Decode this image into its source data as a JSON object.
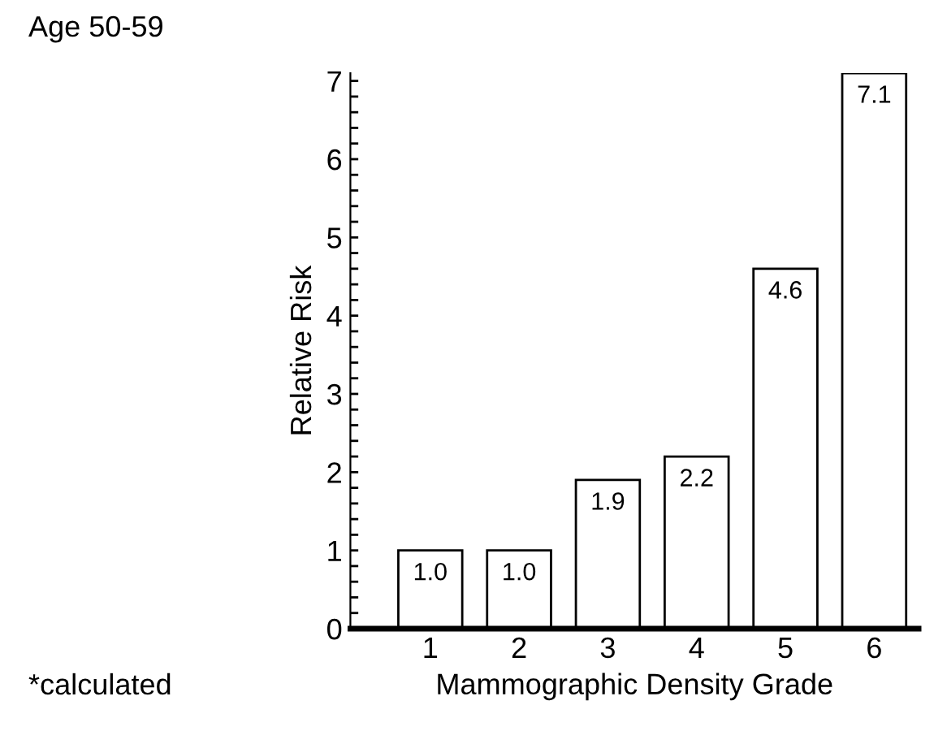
{
  "chart_data": {
    "type": "bar",
    "title": "Age 50-59",
    "xlabel": "Mammographic Density Grade",
    "ylabel": "Relative Risk",
    "categories": [
      "1",
      "2",
      "3",
      "4",
      "5",
      "6"
    ],
    "values": [
      1.0,
      1.0,
      1.9,
      2.2,
      4.6,
      7.1
    ],
    "value_labels": [
      "1.0",
      "1.0",
      "1.9",
      "2.2",
      "4.6",
      "7.1"
    ],
    "color": "#ffffff",
    "ylim": [
      0,
      7.1
    ],
    "yticks": [
      0,
      {
        "value": 0.2,
        "label": null
      },
      {
        "value": 0.4,
        "label": null
      },
      {
        "value": 0.6,
        "label": null
      },
      {
        "value": 0.8,
        "label": null
      },
      1,
      {
        "value": 1.2,
        "label": null
      },
      {
        "value": 1.4,
        "label": null
      },
      {
        "value": 1.6,
        "label": null
      },
      {
        "value": 1.8,
        "label": null
      },
      2,
      {
        "value": 2.2,
        "label": null
      },
      {
        "value": 2.4,
        "label": null
      },
      {
        "value": 2.6,
        "label": null
      },
      {
        "value": 2.8,
        "label": null
      },
      3,
      {
        "value": 3.2,
        "label": null
      },
      {
        "value": 3.4,
        "label": null
      },
      {
        "value": 3.6,
        "label": null
      },
      {
        "value": 3.8,
        "label": null
      },
      4,
      {
        "value": 4.2,
        "label": null
      },
      {
        "value": 4.4,
        "label": null
      },
      {
        "value": 4.6,
        "label": null
      },
      {
        "value": 4.8,
        "label": null
      },
      5,
      {
        "value": 5.2,
        "label": null
      },
      {
        "value": 5.4,
        "label": null
      },
      {
        "value": 5.6,
        "label": null
      },
      {
        "value": 5.8,
        "label": null
      },
      6,
      {
        "value": 6.2,
        "label": null
      },
      {
        "value": 6.4,
        "label": null
      },
      {
        "value": 6.6,
        "label": null
      },
      {
        "value": 6.8,
        "label": null
      },
      7
    ],
    "grid": false,
    "annotations": [
      "*calculated"
    ]
  }
}
